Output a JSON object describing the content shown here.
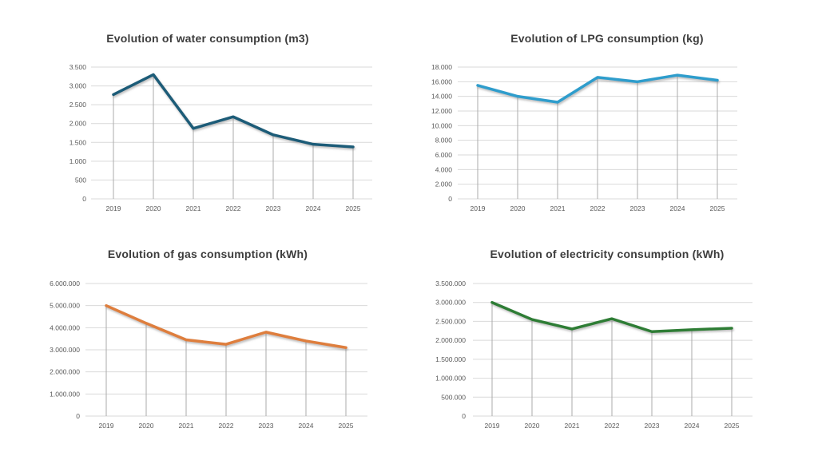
{
  "style": {
    "background": "#ffffff",
    "title_color": "#3d3d3d",
    "tick_label_color": "#595959",
    "gridline_color": "#d9d9d9",
    "dropline_color": "#ababab"
  },
  "chart_data": [
    {
      "id": "water",
      "type": "line",
      "title": "Evolution of water consumption (m3)",
      "categories": [
        "2019",
        "2020",
        "2021",
        "2022",
        "2023",
        "2024",
        "2025"
      ],
      "values": [
        2770,
        3300,
        1870,
        2180,
        1700,
        1450,
        1380
      ],
      "ylim": [
        0,
        3500
      ],
      "y_ticks": [
        "0",
        "500",
        "1.000",
        "1.500",
        "2.000",
        "2.500",
        "3.000",
        "3.500"
      ],
      "xlabel": "",
      "ylabel": "",
      "line_color": "#1f5c78",
      "grid": "horizontal gridlines + vertical drop lines per category",
      "legend": "none"
    },
    {
      "id": "lpg",
      "type": "line",
      "title": "Evolution of LPG consumption (kg)",
      "categories": [
        "2019",
        "2020",
        "2021",
        "2022",
        "2023",
        "2024",
        "2025"
      ],
      "values": [
        15500,
        14000,
        13200,
        16600,
        16000,
        16900,
        16200
      ],
      "ylim": [
        0,
        18000
      ],
      "y_ticks": [
        "0",
        "2.000",
        "4.000",
        "6.000",
        "8.000",
        "10.000",
        "12.000",
        "14.000",
        "16.000",
        "18.000"
      ],
      "xlabel": "",
      "ylabel": "",
      "line_color": "#2f9dcc",
      "grid": "horizontal gridlines + vertical drop lines per category",
      "legend": "none"
    },
    {
      "id": "gas",
      "type": "line",
      "title": "Evolution of gas consumption (kWh)",
      "categories": [
        "2019",
        "2020",
        "2021",
        "2022",
        "2023",
        "2024",
        "2025"
      ],
      "values": [
        5000000,
        4200000,
        3450000,
        3250000,
        3800000,
        3400000,
        3100000
      ],
      "ylim": [
        0,
        6000000
      ],
      "y_ticks": [
        "0",
        "1.000.000",
        "2.000.000",
        "3.000.000",
        "4.000.000",
        "5.000.000",
        "6.000.000"
      ],
      "xlabel": "",
      "ylabel": "",
      "line_color": "#de7e3e",
      "grid": "horizontal gridlines + vertical drop lines per category",
      "legend": "none"
    },
    {
      "id": "electricity",
      "type": "line",
      "title": "Evolution of electricity consumption (kWh)",
      "categories": [
        "2019",
        "2020",
        "2021",
        "2022",
        "2023",
        "2024",
        "2025"
      ],
      "values": [
        3000000,
        2550000,
        2300000,
        2570000,
        2230000,
        2280000,
        2320000
      ],
      "ylim": [
        0,
        3500000
      ],
      "y_ticks": [
        "0",
        "500.000",
        "1.000.000",
        "1.500.000",
        "2.000.000",
        "2.500.000",
        "3.000.000",
        "3.500.000"
      ],
      "xlabel": "",
      "ylabel": "",
      "line_color": "#2f7d36",
      "grid": "horizontal gridlines + vertical drop lines per category",
      "legend": "none"
    }
  ]
}
